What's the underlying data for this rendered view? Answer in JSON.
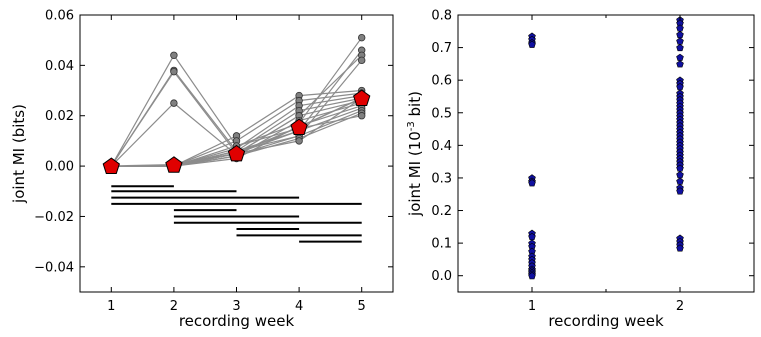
{
  "chart_data": [
    {
      "type": "line",
      "xlabel": "recording week",
      "ylabel": "joint MI (bits)",
      "xlim": [
        0.5,
        5.5
      ],
      "ylim": [
        -0.05,
        0.06
      ],
      "x_ticks": [
        "1",
        "2",
        "3",
        "4",
        "5"
      ],
      "y_ticks": [
        "−0.04",
        "−0.02",
        "0.00",
        "0.02",
        "0.04",
        "0.06"
      ],
      "grid": false,
      "colors": {
        "lines": "#8c8c8c",
        "points": "#808080",
        "mean": "#e00000",
        "bars": "#000000"
      },
      "series": [
        {
          "x": [
            1,
            2,
            3,
            4,
            5
          ],
          "y": [
            0,
            0.044,
            0.008,
            0.017,
            0.051
          ]
        },
        {
          "x": [
            1,
            2,
            3,
            4,
            5
          ],
          "y": [
            0,
            0.038,
            0.006,
            0.014,
            0.046
          ]
        },
        {
          "x": [
            1,
            2,
            3,
            4,
            5
          ],
          "y": [
            0,
            0.0375,
            0.005,
            0.02,
            0.044
          ]
        },
        {
          "x": [
            1,
            2,
            3,
            4,
            5
          ],
          "y": [
            0,
            0.025,
            0.0045,
            0.012,
            0.042
          ]
        },
        {
          "x": [
            1,
            2,
            3,
            4,
            5
          ],
          "y": [
            0,
            0.0,
            0.012,
            0.028,
            0.03
          ]
        },
        {
          "x": [
            1,
            2,
            3,
            4,
            5
          ],
          "y": [
            0,
            0.0,
            0.01,
            0.026,
            0.029
          ]
        },
        {
          "x": [
            1,
            2,
            3,
            4,
            5
          ],
          "y": [
            0,
            0.0,
            0.007,
            0.024,
            0.028
          ]
        },
        {
          "x": [
            1,
            2,
            3,
            4,
            5
          ],
          "y": [
            0,
            0.0,
            0.006,
            0.022,
            0.027
          ]
        },
        {
          "x": [
            1,
            2,
            3,
            4,
            5
          ],
          "y": [
            0,
            0.0,
            0.005,
            0.02,
            0.026
          ]
        },
        {
          "x": [
            1,
            2,
            3,
            4,
            5
          ],
          "y": [
            0,
            0.0,
            0.004,
            0.018,
            0.025
          ]
        },
        {
          "x": [
            1,
            2,
            3,
            4,
            5
          ],
          "y": [
            0,
            0.0,
            0.003,
            0.016,
            0.024
          ]
        },
        {
          "x": [
            1,
            2,
            3,
            4,
            5
          ],
          "y": [
            0,
            0.0,
            0.005,
            0.014,
            0.023
          ]
        },
        {
          "x": [
            1,
            2,
            3,
            4,
            5
          ],
          "y": [
            0,
            0.0,
            0.006,
            0.012,
            0.022
          ]
        },
        {
          "x": [
            1,
            2,
            3,
            4,
            5
          ],
          "y": [
            0,
            0.0,
            0.004,
            0.011,
            0.021
          ]
        },
        {
          "x": [
            1,
            2,
            3,
            4,
            5
          ],
          "y": [
            0,
            0.0,
            0.008,
            0.015,
            0.02
          ]
        },
        {
          "x": [
            1,
            2,
            3,
            4,
            5
          ],
          "y": [
            0,
            0.0,
            0.005,
            0.01,
            0.027
          ]
        }
      ],
      "mean": {
        "x": [
          1,
          2,
          3,
          4,
          5
        ],
        "y": [
          0.0,
          0.0005,
          0.005,
          0.0155,
          0.027
        ]
      },
      "significance_bars": [
        {
          "from": 1,
          "to": 2,
          "y": -0.008
        },
        {
          "from": 1,
          "to": 3,
          "y": -0.01
        },
        {
          "from": 1,
          "to": 4,
          "y": -0.0125
        },
        {
          "from": 1,
          "to": 5,
          "y": -0.015
        },
        {
          "from": 2,
          "to": 3,
          "y": -0.0175
        },
        {
          "from": 2,
          "to": 4,
          "y": -0.02
        },
        {
          "from": 2,
          "to": 5,
          "y": -0.0225
        },
        {
          "from": 3,
          "to": 4,
          "y": -0.025
        },
        {
          "from": 3,
          "to": 5,
          "y": -0.0275
        },
        {
          "from": 4,
          "to": 5,
          "y": -0.03
        }
      ]
    },
    {
      "type": "scatter",
      "xlabel": "recording week",
      "ylabel": "joint MI (10",
      "ylabel_sup": "-3",
      "ylabel_end": " bit)",
      "xlim": [
        0.5,
        2.5
      ],
      "ylim": [
        -0.05,
        0.8
      ],
      "x_ticks": [
        "1",
        "2"
      ],
      "y_ticks": [
        "0.0",
        "0.1",
        "0.2",
        "0.3",
        "0.4",
        "0.5",
        "0.6",
        "0.7",
        "0.8"
      ],
      "grid": false,
      "colors": {
        "points": "#1010a0"
      },
      "points": [
        {
          "x": 1,
          "y": 0.735
        },
        {
          "x": 1,
          "y": 0.725
        },
        {
          "x": 1,
          "y": 0.715
        },
        {
          "x": 1,
          "y": 0.71
        },
        {
          "x": 1,
          "y": 0.3
        },
        {
          "x": 1,
          "y": 0.29
        },
        {
          "x": 1,
          "y": 0.285
        },
        {
          "x": 1,
          "y": 0.13
        },
        {
          "x": 1,
          "y": 0.12
        },
        {
          "x": 1,
          "y": 0.1
        },
        {
          "x": 1,
          "y": 0.09
        },
        {
          "x": 1,
          "y": 0.075
        },
        {
          "x": 1,
          "y": 0.06
        },
        {
          "x": 1,
          "y": 0.05
        },
        {
          "x": 1,
          "y": 0.04
        },
        {
          "x": 1,
          "y": 0.03
        },
        {
          "x": 1,
          "y": 0.02
        },
        {
          "x": 1,
          "y": 0.015
        },
        {
          "x": 1,
          "y": 0.01
        },
        {
          "x": 1,
          "y": 0.005
        },
        {
          "x": 1,
          "y": 0.0
        },
        {
          "x": 2,
          "y": 0.785
        },
        {
          "x": 2,
          "y": 0.775
        },
        {
          "x": 2,
          "y": 0.76
        },
        {
          "x": 2,
          "y": 0.74
        },
        {
          "x": 2,
          "y": 0.72
        },
        {
          "x": 2,
          "y": 0.7
        },
        {
          "x": 2,
          "y": 0.67
        },
        {
          "x": 2,
          "y": 0.65
        },
        {
          "x": 2,
          "y": 0.6
        },
        {
          "x": 2,
          "y": 0.59
        },
        {
          "x": 2,
          "y": 0.58
        },
        {
          "x": 2,
          "y": 0.56
        },
        {
          "x": 2,
          "y": 0.55
        },
        {
          "x": 2,
          "y": 0.54
        },
        {
          "x": 2,
          "y": 0.53
        },
        {
          "x": 2,
          "y": 0.52
        },
        {
          "x": 2,
          "y": 0.51
        },
        {
          "x": 2,
          "y": 0.5
        },
        {
          "x": 2,
          "y": 0.49
        },
        {
          "x": 2,
          "y": 0.48
        },
        {
          "x": 2,
          "y": 0.47
        },
        {
          "x": 2,
          "y": 0.46
        },
        {
          "x": 2,
          "y": 0.45
        },
        {
          "x": 2,
          "y": 0.44
        },
        {
          "x": 2,
          "y": 0.43
        },
        {
          "x": 2,
          "y": 0.42
        },
        {
          "x": 2,
          "y": 0.41
        },
        {
          "x": 2,
          "y": 0.4
        },
        {
          "x": 2,
          "y": 0.39
        },
        {
          "x": 2,
          "y": 0.38
        },
        {
          "x": 2,
          "y": 0.37
        },
        {
          "x": 2,
          "y": 0.36
        },
        {
          "x": 2,
          "y": 0.35
        },
        {
          "x": 2,
          "y": 0.34
        },
        {
          "x": 2,
          "y": 0.33
        },
        {
          "x": 2,
          "y": 0.31
        },
        {
          "x": 2,
          "y": 0.29
        },
        {
          "x": 2,
          "y": 0.27
        },
        {
          "x": 2,
          "y": 0.26
        },
        {
          "x": 2,
          "y": 0.115
        },
        {
          "x": 2,
          "y": 0.105
        },
        {
          "x": 2,
          "y": 0.095
        },
        {
          "x": 2,
          "y": 0.085
        }
      ]
    }
  ]
}
